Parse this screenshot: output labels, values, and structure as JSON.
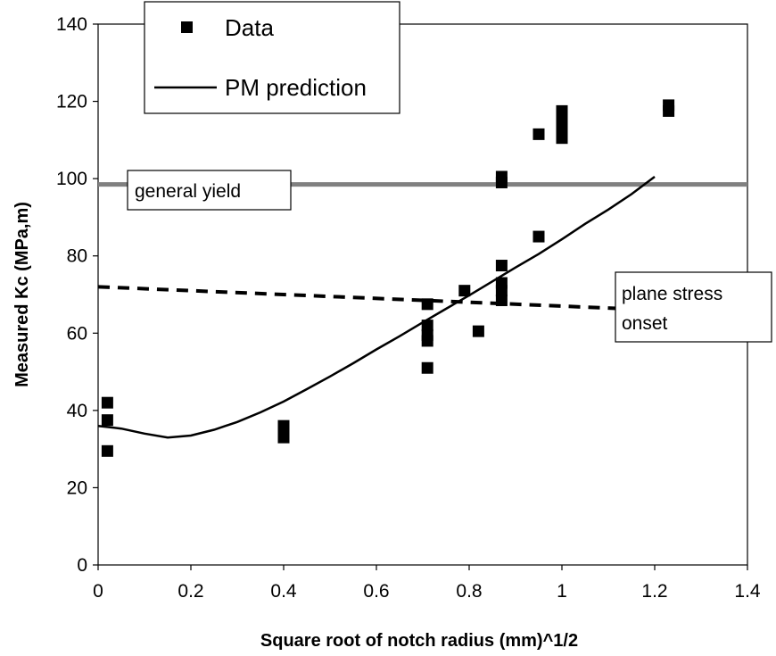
{
  "chart_data": {
    "type": "scatter",
    "xlabel": "Square root of notch radius (mm)^1/2",
    "ylabel": "Measured Kc (MPa,m)",
    "xlim": [
      0,
      1.4
    ],
    "ylim": [
      0,
      140
    ],
    "xticks": [
      0,
      0.2,
      0.4,
      0.6,
      0.8,
      1,
      1.2,
      1.4
    ],
    "yticks": [
      0,
      20,
      40,
      60,
      80,
      100,
      120,
      140
    ],
    "xtick_labels": [
      "0",
      "0.2",
      "0.4",
      "0.6",
      "0.8",
      "1",
      "1.2",
      "1.4"
    ],
    "ytick_labels": [
      "0",
      "20",
      "40",
      "60",
      "80",
      "100",
      "120",
      "140"
    ],
    "grid": false,
    "legend_position": "top-left",
    "series": [
      {
        "name": "Data",
        "kind": "scatter",
        "marker": "square",
        "color": "#000000",
        "points": [
          [
            0.02,
            42
          ],
          [
            0.02,
            37.5
          ],
          [
            0.02,
            29.5
          ],
          [
            0.4,
            36
          ],
          [
            0.4,
            34
          ],
          [
            0.4,
            33
          ],
          [
            0.71,
            67.5
          ],
          [
            0.71,
            62
          ],
          [
            0.71,
            59.5
          ],
          [
            0.71,
            58
          ],
          [
            0.71,
            51
          ],
          [
            0.79,
            71
          ],
          [
            0.82,
            60.5
          ],
          [
            0.87,
            100.5
          ],
          [
            0.87,
            99
          ],
          [
            0.87,
            77.5
          ],
          [
            0.87,
            73
          ],
          [
            0.87,
            71
          ],
          [
            0.87,
            68.5
          ],
          [
            0.95,
            111.5
          ],
          [
            0.95,
            85
          ],
          [
            1.0,
            117.5
          ],
          [
            1.0,
            115
          ],
          [
            1.0,
            113
          ],
          [
            1.0,
            110.5
          ],
          [
            1.23,
            119
          ],
          [
            1.23,
            117.5
          ]
        ]
      },
      {
        "name": "PM prediction",
        "kind": "line",
        "color": "#000000",
        "points": [
          [
            0.0,
            36
          ],
          [
            0.05,
            35.3
          ],
          [
            0.1,
            34
          ],
          [
            0.15,
            33
          ],
          [
            0.2,
            33.5
          ],
          [
            0.25,
            35
          ],
          [
            0.3,
            37
          ],
          [
            0.35,
            39.5
          ],
          [
            0.4,
            42.3
          ],
          [
            0.45,
            45.5
          ],
          [
            0.5,
            48.8
          ],
          [
            0.55,
            52.2
          ],
          [
            0.6,
            55.8
          ],
          [
            0.65,
            59.2
          ],
          [
            0.7,
            62.8
          ],
          [
            0.75,
            66.3
          ],
          [
            0.8,
            69.8
          ],
          [
            0.85,
            73.4
          ],
          [
            0.9,
            77
          ],
          [
            0.95,
            80.5
          ],
          [
            1.0,
            84.3
          ],
          [
            1.05,
            88.3
          ],
          [
            1.1,
            92
          ],
          [
            1.15,
            96
          ],
          [
            1.2,
            100.5
          ]
        ]
      },
      {
        "kind": "hline",
        "color": "#808080",
        "y": 98.5
      },
      {
        "kind": "dashed-line",
        "color": "#000000",
        "points": [
          [
            0,
            72
          ],
          [
            1.2,
            66
          ]
        ]
      }
    ],
    "annotations": [
      {
        "text": "general yield",
        "near": [
          0.08,
          98.5
        ]
      },
      {
        "lines": [
          "plane stress",
          "onset"
        ],
        "near": [
          1.3,
          66.5
        ]
      }
    ]
  }
}
